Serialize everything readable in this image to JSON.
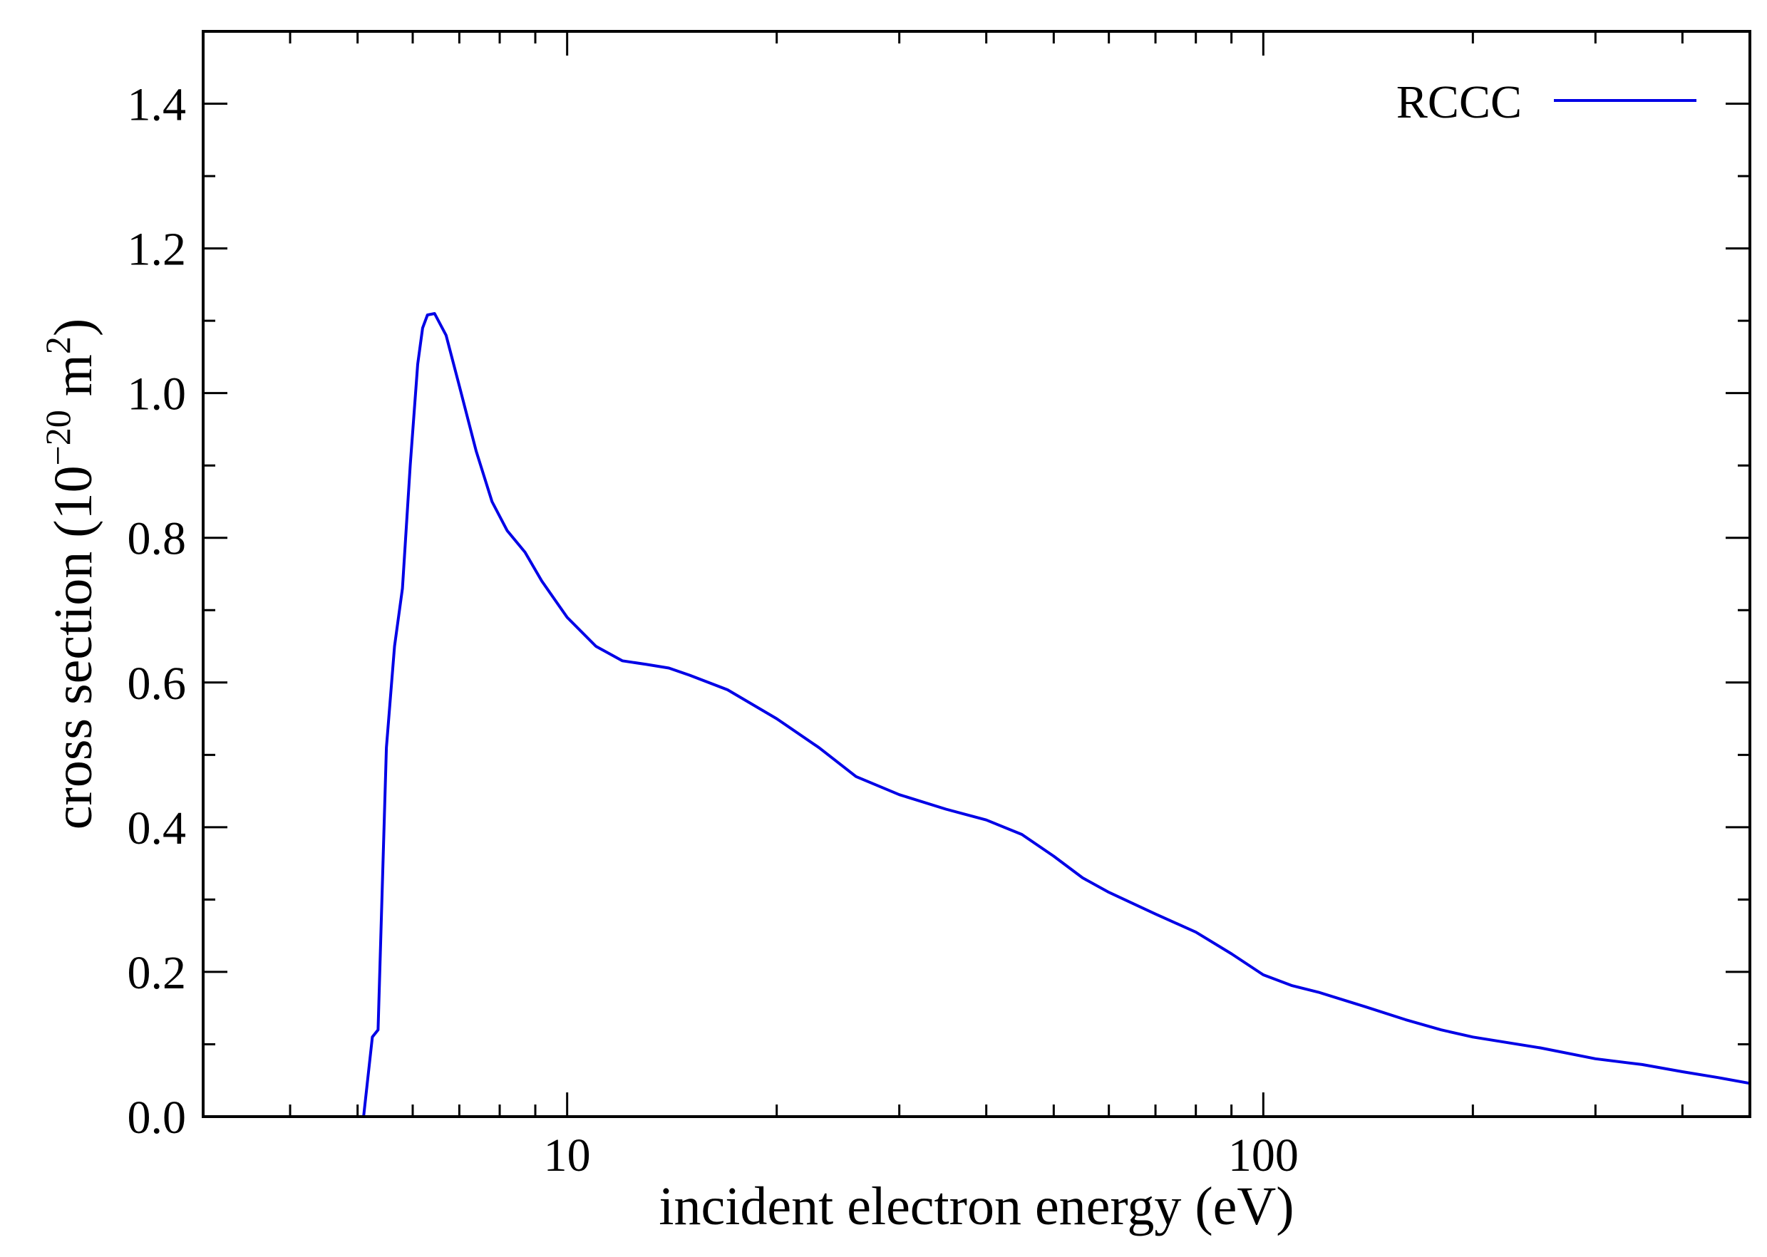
{
  "chart_data": {
    "type": "line",
    "title": "",
    "xlabel": "incident electron energy (eV)",
    "ylabel": {
      "main": "cross section (10",
      "exponent": "−20",
      "unit": " m",
      "unit_exponent": "2",
      "close": ")"
    },
    "x_scale": "log",
    "xlim": [
      3,
      500
    ],
    "ylim": [
      0,
      1.5
    ],
    "x_ticks": [
      {
        "value": 10,
        "label": "10"
      },
      {
        "value": 100,
        "label": "100"
      }
    ],
    "y_ticks": [
      {
        "value": 0.0,
        "label": "0.0"
      },
      {
        "value": 0.2,
        "label": "0.2"
      },
      {
        "value": 0.4,
        "label": "0.4"
      },
      {
        "value": 0.6,
        "label": "0.6"
      },
      {
        "value": 0.8,
        "label": "0.8"
      },
      {
        "value": 1.0,
        "label": "1.0"
      },
      {
        "value": 1.2,
        "label": "1.2"
      },
      {
        "value": 1.4,
        "label": "1.4"
      }
    ],
    "grid": false,
    "legend_position": "top-right",
    "series": [
      {
        "name": "RCCC",
        "color": "#0000e6",
        "x": [
          5.1,
          5.25,
          5.35,
          5.5,
          5.65,
          5.8,
          5.95,
          6.1,
          6.2,
          6.3,
          6.45,
          6.7,
          7.0,
          7.4,
          7.8,
          8.2,
          8.7,
          9.2,
          10,
          11,
          12,
          13,
          14,
          15,
          17,
          20,
          23,
          26,
          30,
          35,
          40,
          45,
          50,
          55,
          60,
          70,
          80,
          90,
          100,
          110,
          120,
          140,
          160,
          180,
          200,
          250,
          300,
          350,
          400,
          450,
          500
        ],
        "y": [
          0.0,
          0.11,
          0.12,
          0.51,
          0.65,
          0.73,
          0.9,
          1.04,
          1.09,
          1.108,
          1.11,
          1.08,
          1.01,
          0.92,
          0.85,
          0.81,
          0.78,
          0.74,
          0.69,
          0.65,
          0.63,
          0.625,
          0.62,
          0.61,
          0.59,
          0.55,
          0.51,
          0.47,
          0.445,
          0.425,
          0.41,
          0.39,
          0.36,
          0.33,
          0.31,
          0.28,
          0.255,
          0.225,
          0.196,
          0.181,
          0.172,
          0.152,
          0.134,
          0.12,
          0.11,
          0.095,
          0.08,
          0.072,
          0.062,
          0.054,
          0.046
        ]
      }
    ]
  }
}
